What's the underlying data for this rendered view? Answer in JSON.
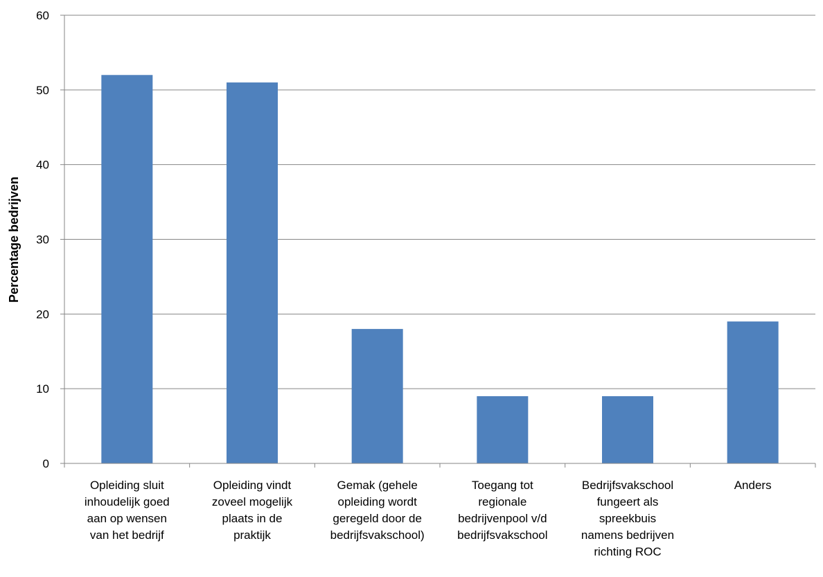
{
  "chart_data": {
    "type": "bar",
    "title": "",
    "xlabel": "",
    "ylabel": "Percentage bedrijven",
    "ylim": [
      0,
      60
    ],
    "yticks": [
      0,
      10,
      20,
      30,
      40,
      50,
      60
    ],
    "grid": true,
    "legend": "none",
    "bar_color": "#4f81bd",
    "grid_color": "#868686",
    "categories": [
      [
        "Opleiding sluit",
        "inhoudelijk goed",
        "aan op wensen",
        "van het bedrijf"
      ],
      [
        "Opleiding vindt",
        "zoveel mogelijk",
        "plaats in de",
        "praktijk"
      ],
      [
        "Gemak (gehele",
        "opleiding wordt",
        "geregeld door de",
        "bedrijfsvakschool)"
      ],
      [
        "Toegang tot",
        "regionale",
        "bedrijvenpool v/d",
        "bedrijfsvakschool"
      ],
      [
        "Bedrijfsvakschool",
        "fungeert als",
        "spreekbuis",
        "namens bedrijven",
        "richting ROC"
      ],
      [
        "Anders"
      ]
    ],
    "values": [
      52,
      51,
      18,
      9,
      9,
      19
    ]
  }
}
